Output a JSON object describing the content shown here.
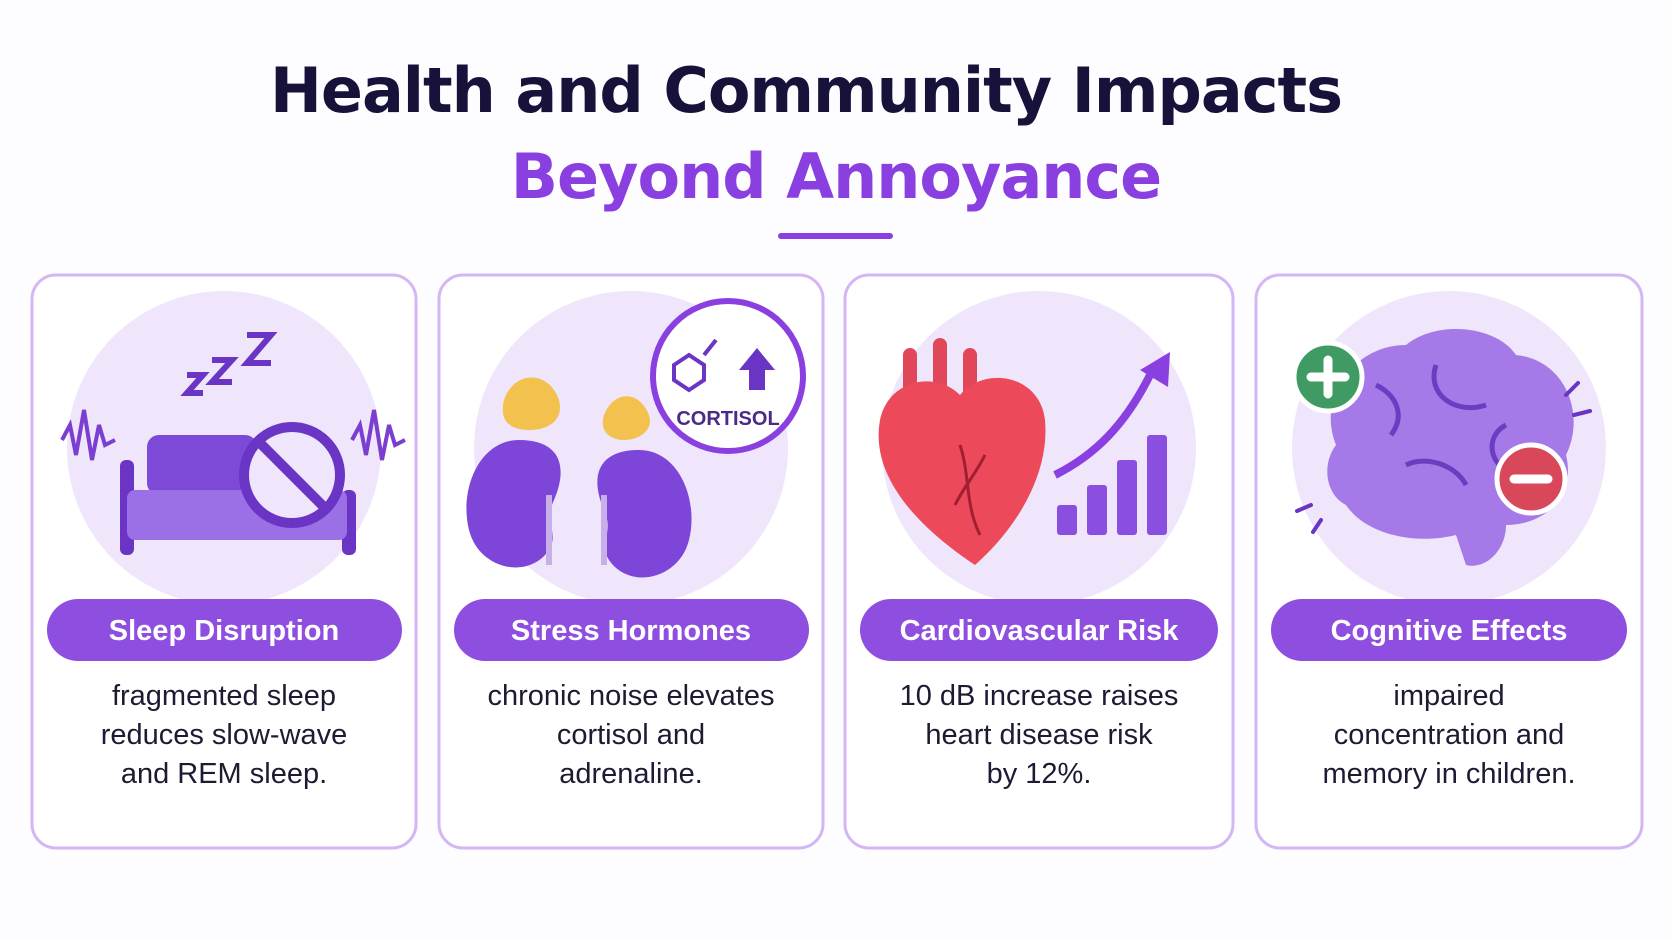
{
  "header": {
    "title_line1": "Health and Community Impacts",
    "title_line2": "Beyond Annoyance"
  },
  "cards": [
    {
      "title": "Sleep Disruption",
      "description": [
        "fragmented sleep",
        "reduces slow-wave",
        "and REM sleep."
      ]
    },
    {
      "title": "Stress Hormones",
      "icon_label": "CORTISOL",
      "description": [
        "chronic noise elevates",
        "cortisol and",
        "adrenaline."
      ]
    },
    {
      "title": "Cardiovascular Risk",
      "description": [
        "10 dB increase raises",
        "heart disease risk",
        "by 12%."
      ]
    },
    {
      "title": "Cognitive Effects",
      "description": [
        "impaired",
        "concentration and",
        "memory in children."
      ]
    }
  ]
}
